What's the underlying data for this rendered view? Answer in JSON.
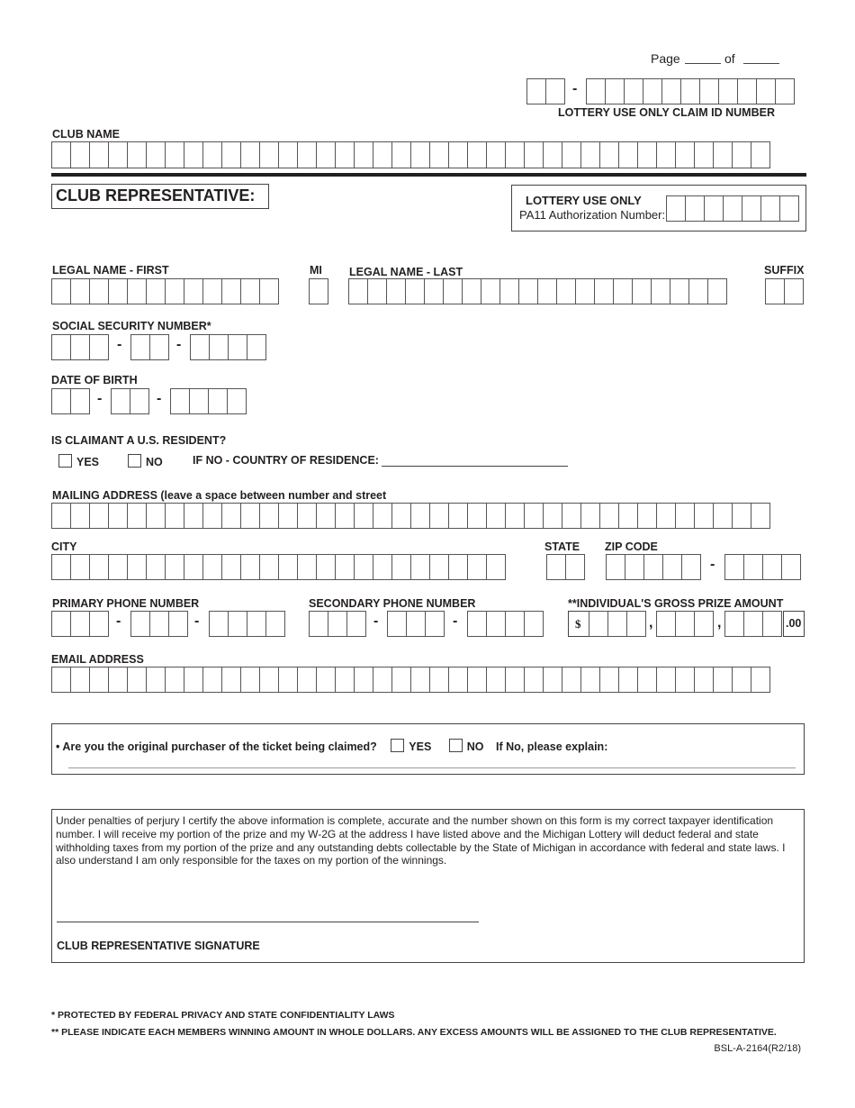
{
  "header": {
    "page_label": "Page",
    "of_label": "of",
    "claim_id_label": "LOTTERY USE ONLY CLAIM ID NUMBER"
  },
  "club": {
    "club_name_label": "CLUB NAME",
    "section_title": "CLUB REPRESENTATIVE:"
  },
  "lottery_box": {
    "title": "LOTTERY USE ONLY",
    "pa11_label": "PA11 Authorization Number:"
  },
  "fields": {
    "first": "LEGAL NAME - FIRST",
    "mi": "MI",
    "last": "LEGAL NAME - LAST",
    "suffix": "SUFFIX",
    "ssn": "SOCIAL SECURITY NUMBER*",
    "dob": "DATE OF BIRTH",
    "resident_q": "IS CLAIMANT A U.S. RESIDENT?",
    "yes": "YES",
    "no": "NO",
    "country": "IF NO - COUNTRY OF RESIDENCE:",
    "mailing": "MAILING ADDRESS (leave a space between number and street",
    "city": "CITY",
    "state": "STATE",
    "zip": "ZIP CODE",
    "primary_phone": "PRIMARY PHONE NUMBER",
    "secondary_phone": "SECONDARY PHONE NUMBER",
    "prize": "**INDIVIDUAL'S GROSS PRIZE AMOUNT",
    "dollar": "$",
    "comma": ",",
    "cents": ".00",
    "email": "EMAIL ADDRESS",
    "dash": "-"
  },
  "purchaser": {
    "bullet": "•",
    "question": "Are you the original purchaser of the ticket being claimed?",
    "yes": "YES",
    "no": "NO",
    "explain": "If No, please explain:"
  },
  "certification": {
    "text": "Under penalties of perjury I certify the above information is complete, accurate and the number shown on this form is my correct taxpayer identification number.  I will receive my portion of the prize and my W-2G at the address I have listed above and the Michigan Lottery will deduct federal and state withholding taxes from my portion of the prize and any outstanding debts collectable by the State of Michigan in accordance with federal and state laws. I also understand I am only responsible for the taxes on my portion of the winnings.",
    "signature_label": "CLUB REPRESENTATIVE SIGNATURE"
  },
  "footer": {
    "note1": "*  PROTECTED BY FEDERAL PRIVACY AND STATE CONFIDENTIALITY LAWS",
    "note2": "** PLEASE INDICATE EACH MEMBERS WINNING AMOUNT IN WHOLE DOLLARS. ANY EXCESS AMOUNTS WILL BE ASSIGNED TO THE CLUB REPRESENTATIVE.",
    "form_id": "BSL-A-2164(R2/18)"
  }
}
